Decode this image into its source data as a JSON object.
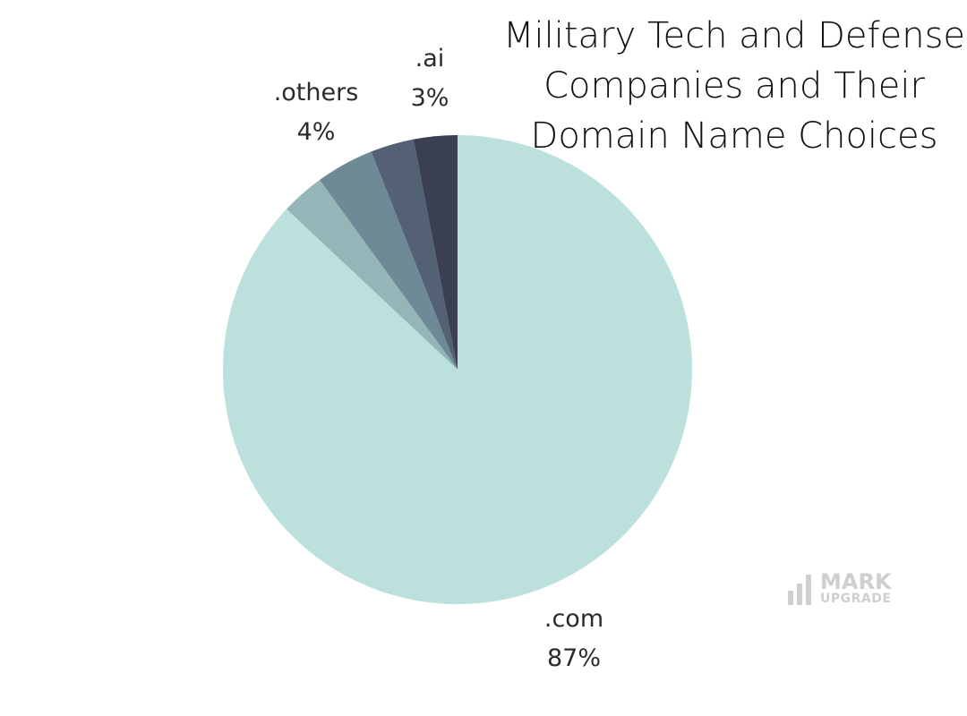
{
  "title_lines": [
    "Military Tech and Defense",
    "Companies and Their",
    "Domain Name Choices"
  ],
  "chart_data": {
    "type": "pie",
    "title": "Military Tech and Defense Companies and Their Domain Name Choices",
    "start": "12 o'clock, clockwise",
    "slices": [
      {
        "label": ".com",
        "value": 87,
        "display": "87%",
        "color": "#bce1dd"
      },
      {
        "label": "",
        "value": 3,
        "display": "",
        "color": "#94b6b8"
      },
      {
        "label": ".others",
        "value": 4,
        "display": "4%",
        "color": "#6e8a97"
      },
      {
        "label": "",
        "value": 3,
        "display": "",
        "color": "#546174"
      },
      {
        "label": ".ai",
        "value": 3,
        "display": "3%",
        "color": "#3a3f52"
      }
    ]
  },
  "labels": {
    "ai": {
      "name": ".ai",
      "pct": "3%"
    },
    "others": {
      "name": ".others",
      "pct": "4%"
    },
    "com": {
      "name": ".com",
      "pct": "87%"
    }
  },
  "logo": {
    "word1": "MARK",
    "word2": "UPGRADE",
    "color": "#cfcfcf"
  }
}
